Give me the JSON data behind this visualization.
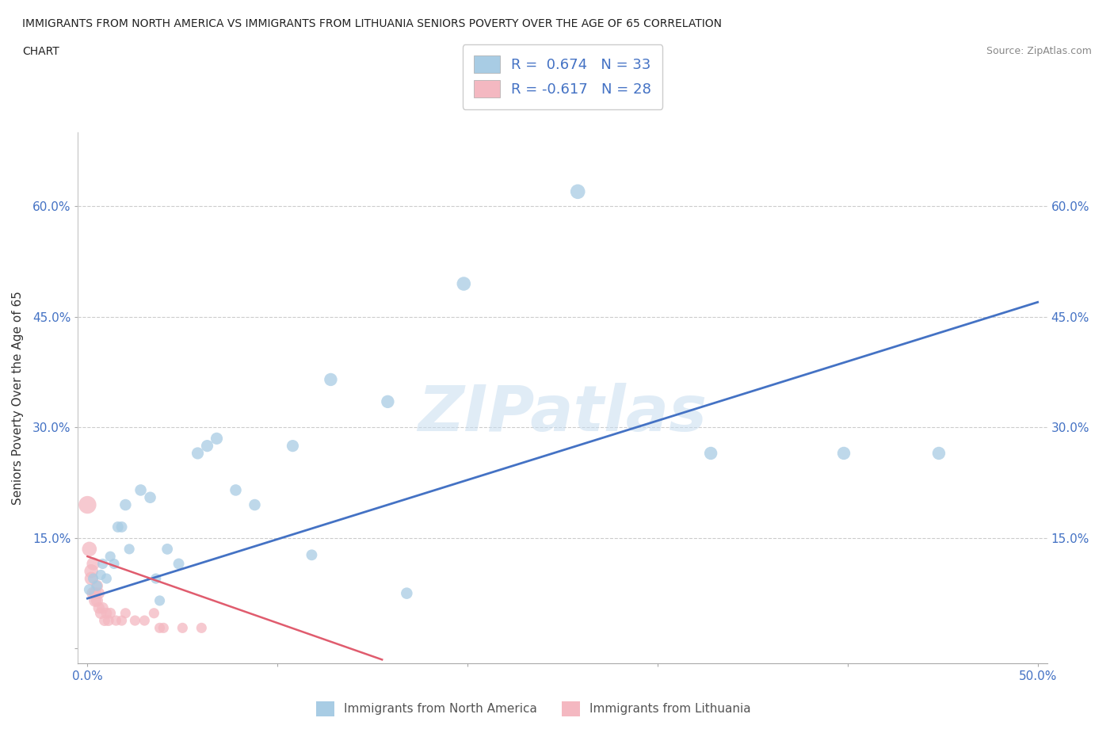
{
  "title_line1": "IMMIGRANTS FROM NORTH AMERICA VS IMMIGRANTS FROM LITHUANIA SENIORS POVERTY OVER THE AGE OF 65 CORRELATION",
  "title_line2": "CHART",
  "source": "Source: ZipAtlas.com",
  "ylabel": "Seniors Poverty Over the Age of 65",
  "xlim": [
    -0.005,
    0.505
  ],
  "ylim": [
    -0.02,
    0.7
  ],
  "xticks": [
    0.0,
    0.1,
    0.2,
    0.3,
    0.4,
    0.5
  ],
  "xtick_labels": [
    "0.0%",
    "",
    "",
    "",
    "",
    "50.0%"
  ],
  "yticks": [
    0.0,
    0.15,
    0.3,
    0.45,
    0.6
  ],
  "ytick_labels": [
    "",
    "15.0%",
    "30.0%",
    "45.0%",
    "60.0%"
  ],
  "watermark": "ZIPatlas",
  "legend_r1": "R =  0.674   N = 33",
  "legend_r2": "R = -0.617   N = 28",
  "blue_color": "#a8cce4",
  "pink_color": "#f4b8c1",
  "blue_line_color": "#4472C4",
  "pink_line_color": "#e05c6e",
  "blue_scatter": [
    [
      0.001,
      0.08
    ],
    [
      0.003,
      0.095
    ],
    [
      0.005,
      0.085
    ],
    [
      0.007,
      0.1
    ],
    [
      0.008,
      0.115
    ],
    [
      0.01,
      0.095
    ],
    [
      0.012,
      0.125
    ],
    [
      0.014,
      0.115
    ],
    [
      0.016,
      0.165
    ],
    [
      0.018,
      0.165
    ],
    [
      0.02,
      0.195
    ],
    [
      0.022,
      0.135
    ],
    [
      0.028,
      0.215
    ],
    [
      0.033,
      0.205
    ],
    [
      0.036,
      0.095
    ],
    [
      0.038,
      0.065
    ],
    [
      0.042,
      0.135
    ],
    [
      0.048,
      0.115
    ],
    [
      0.058,
      0.265
    ],
    [
      0.063,
      0.275
    ],
    [
      0.068,
      0.285
    ],
    [
      0.078,
      0.215
    ],
    [
      0.088,
      0.195
    ],
    [
      0.108,
      0.275
    ],
    [
      0.118,
      0.127
    ],
    [
      0.128,
      0.365
    ],
    [
      0.158,
      0.335
    ],
    [
      0.168,
      0.075
    ],
    [
      0.198,
      0.495
    ],
    [
      0.258,
      0.62
    ],
    [
      0.328,
      0.265
    ],
    [
      0.398,
      0.265
    ],
    [
      0.448,
      0.265
    ]
  ],
  "pink_scatter": [
    [
      0.0,
      0.195
    ],
    [
      0.001,
      0.135
    ],
    [
      0.002,
      0.105
    ],
    [
      0.002,
      0.095
    ],
    [
      0.003,
      0.075
    ],
    [
      0.003,
      0.115
    ],
    [
      0.004,
      0.075
    ],
    [
      0.004,
      0.065
    ],
    [
      0.005,
      0.065
    ],
    [
      0.005,
      0.085
    ],
    [
      0.006,
      0.075
    ],
    [
      0.006,
      0.055
    ],
    [
      0.007,
      0.048
    ],
    [
      0.008,
      0.055
    ],
    [
      0.009,
      0.038
    ],
    [
      0.01,
      0.048
    ],
    [
      0.011,
      0.038
    ],
    [
      0.012,
      0.048
    ],
    [
      0.015,
      0.038
    ],
    [
      0.018,
      0.038
    ],
    [
      0.02,
      0.048
    ],
    [
      0.025,
      0.038
    ],
    [
      0.03,
      0.038
    ],
    [
      0.035,
      0.048
    ],
    [
      0.038,
      0.028
    ],
    [
      0.04,
      0.028
    ],
    [
      0.05,
      0.028
    ],
    [
      0.06,
      0.028
    ]
  ],
  "blue_sizes": [
    100,
    90,
    90,
    90,
    90,
    90,
    90,
    90,
    100,
    100,
    110,
    90,
    110,
    110,
    90,
    90,
    100,
    100,
    120,
    120,
    120,
    110,
    110,
    120,
    100,
    140,
    140,
    110,
    160,
    180,
    140,
    140,
    140
  ],
  "pink_sizes": [
    260,
    180,
    160,
    150,
    140,
    140,
    130,
    130,
    120,
    120,
    110,
    110,
    110,
    110,
    100,
    100,
    100,
    100,
    90,
    90,
    90,
    90,
    90,
    90,
    90,
    90,
    90,
    90
  ],
  "blue_trend_x": [
    0.0,
    0.5
  ],
  "blue_trend_y": [
    0.068,
    0.47
  ],
  "pink_trend_x": [
    0.0,
    0.155
  ],
  "pink_trend_y": [
    0.125,
    -0.015
  ]
}
